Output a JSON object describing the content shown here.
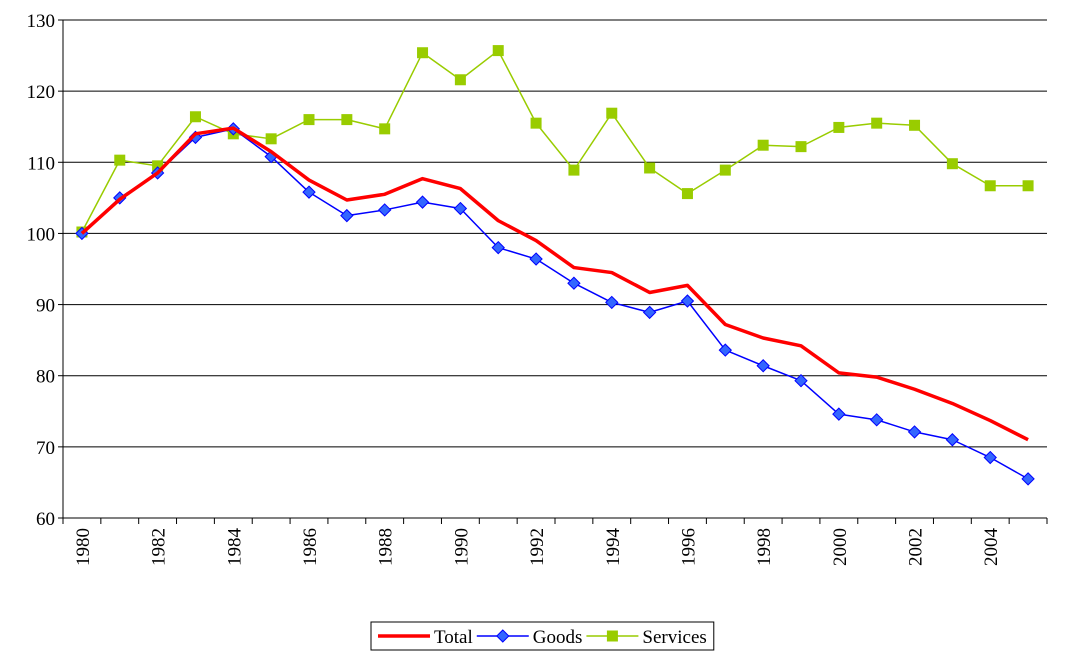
{
  "chart_data": {
    "type": "line",
    "categories": [
      1980,
      null,
      1982,
      null,
      1984,
      null,
      1986,
      null,
      1988,
      null,
      1990,
      null,
      1992,
      null,
      1994,
      null,
      1996,
      null,
      1998,
      null,
      2000,
      null,
      2002,
      null,
      2004,
      null
    ],
    "series": [
      {
        "name": "Total",
        "color": "#ff0000",
        "marker": null,
        "values": [
          100,
          104.8,
          108.5,
          114,
          114.8,
          111.5,
          107.5,
          104.7,
          105.5,
          107.7,
          106.3,
          101.8,
          99,
          95.2,
          94.5,
          91.7,
          92.7,
          87.2,
          85.3,
          84.2,
          80.4,
          79.8,
          78.1,
          76.1,
          73.7,
          71
        ]
      },
      {
        "name": "Goods",
        "color": "#0000ff",
        "marker": "diamond",
        "values": [
          100,
          105,
          108.5,
          113.5,
          114.7,
          110.8,
          105.8,
          102.5,
          103.3,
          104.4,
          103.5,
          98,
          96.4,
          93,
          90.3,
          88.9,
          90.5,
          83.6,
          81.4,
          79.3,
          74.6,
          73.8,
          72.1,
          71,
          68.5,
          65.5
        ]
      },
      {
        "name": "Services",
        "color": "#99cc00",
        "marker": "square",
        "values": [
          100.2,
          110.3,
          109.5,
          116.4,
          114,
          113.3,
          116,
          116,
          114.7,
          125.4,
          121.6,
          125.7,
          115.5,
          108.9,
          116.9,
          109.2,
          105.6,
          108.9,
          112.4,
          112.2,
          114.9,
          115.5,
          115.2,
          109.8,
          106.7,
          106.7
        ]
      }
    ],
    "ylim": [
      60,
      130
    ],
    "yticks": [
      60,
      70,
      80,
      90,
      100,
      110,
      120,
      130
    ],
    "grid": true,
    "legend": "bottom"
  }
}
